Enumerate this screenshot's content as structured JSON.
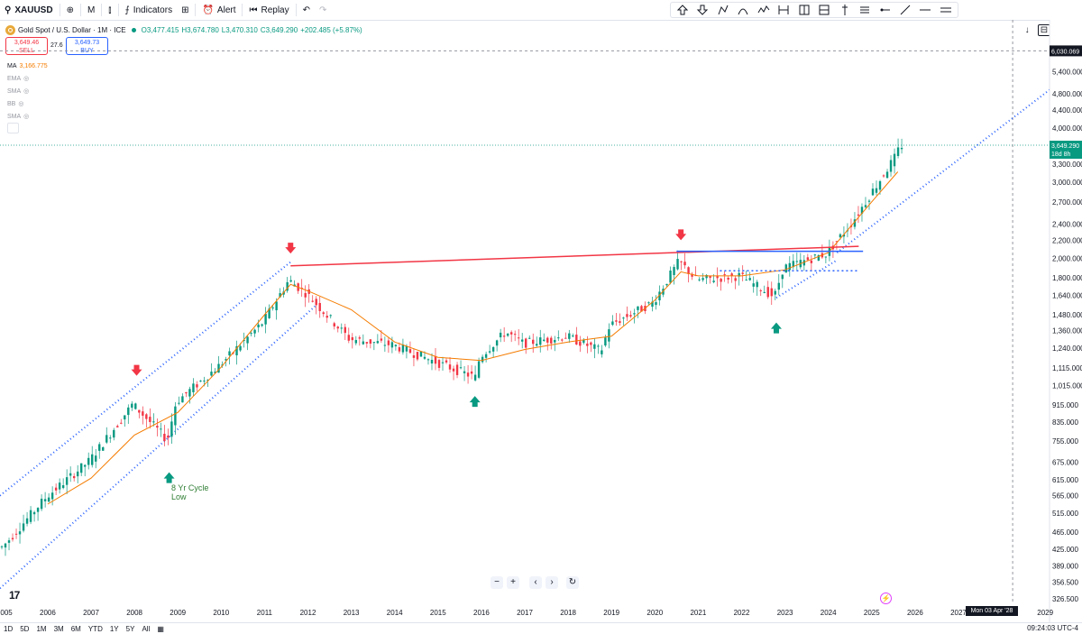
{
  "toolbar": {
    "symbol": "XAUUSD",
    "interval": "M",
    "indicators_label": "Indicators",
    "alert_label": "Alert",
    "replay_label": "Replay"
  },
  "legend": {
    "title": "Gold Spot / U.S. Dollar · 1M · ICE",
    "open": "O3,477.415",
    "high": "H3,674.780",
    "low": "L3,470.310",
    "close": "C3,649.290",
    "change": "+202.485 (+5.87%)"
  },
  "trade": {
    "sell_price": "3,649.46",
    "sell_label": "SELL",
    "spread": "27.6",
    "buy_price": "3,649.73",
    "buy_label": "BUY"
  },
  "indicators": [
    {
      "name": "MA",
      "value": "3,166.775"
    },
    {
      "name": "EMA"
    },
    {
      "name": "SMA"
    },
    {
      "name": "BB"
    },
    {
      "name": "SMA"
    }
  ],
  "price_axis": {
    "labels": [
      "6,030.069",
      "5,400.000",
      "4,800.000",
      "4,400.000",
      "4,000.000",
      "3,300.000",
      "3,000.000",
      "2,700.000",
      "2,400.000",
      "2,200.000",
      "2,000.000",
      "1,800.000",
      "1,640.000",
      "1,480.000",
      "1,360.000",
      "1,240.000",
      "1,115.000",
      "1,015.000",
      "915.000",
      "835.000",
      "755.000",
      "675.000",
      "615.000",
      "565.000",
      "515.000",
      "465.000",
      "425.000",
      "389.000",
      "356.500",
      "326.500"
    ],
    "current_price": "3,649.290",
    "countdown": "18d 8h",
    "crosshair_price": "6,030.069"
  },
  "time_axis": {
    "labels": [
      "2005",
      "2006",
      "2007",
      "2008",
      "2009",
      "2010",
      "2011",
      "2012",
      "2013",
      "2014",
      "2015",
      "2016",
      "2017",
      "2018",
      "2019",
      "2020",
      "2021",
      "2022",
      "2023",
      "2024",
      "2025",
      "2026",
      "2027",
      "2029"
    ],
    "crosshair_date": "Mon 03 Apr '28"
  },
  "annotations": {
    "cycle_low_line1": "8 Yr Cycle",
    "cycle_low_line2": "Low"
  },
  "ranges": [
    "1D",
    "5D",
    "1M",
    "3M",
    "6M",
    "YTD",
    "1Y",
    "5Y",
    "All"
  ],
  "clock": "09:24:03 UTC-4",
  "colors": {
    "up": "#089981",
    "down": "#f23645",
    "ma": "#f57c00",
    "channel": "#2962ff",
    "resistance": "#f23645"
  },
  "chart_data": {
    "type": "candlestick",
    "symbol": "XAUUSD",
    "interval": "1M",
    "y_scale": "log",
    "ylim": [
      320,
      6400
    ],
    "xlim": [
      2004.9,
      2029.1
    ],
    "series": [
      {
        "name": "MA",
        "type": "line",
        "values": [
          [
            2006,
            540
          ],
          [
            2007,
            620
          ],
          [
            2008,
            780
          ],
          [
            2009,
            880
          ],
          [
            2010,
            1120
          ],
          [
            2011,
            1480
          ],
          [
            2011.6,
            1740
          ],
          [
            2012,
            1680
          ],
          [
            2013,
            1520
          ],
          [
            2014,
            1280
          ],
          [
            2015,
            1180
          ],
          [
            2016,
            1160
          ],
          [
            2017,
            1230
          ],
          [
            2018,
            1280
          ],
          [
            2019,
            1320
          ],
          [
            2020,
            1600
          ],
          [
            2020.6,
            1860
          ],
          [
            2021,
            1820
          ],
          [
            2022,
            1820
          ],
          [
            2023,
            1880
          ],
          [
            2024,
            2060
          ],
          [
            2025,
            2700
          ],
          [
            2025.6,
            3167
          ]
        ]
      },
      {
        "name": "Price",
        "type": "candles",
        "values": [
          [
            2005,
            430
          ],
          [
            2006,
            560
          ],
          [
            2007,
            680
          ],
          [
            2008,
            920
          ],
          [
            2008.8,
            760
          ],
          [
            2009,
            930
          ],
          [
            2010,
            1130
          ],
          [
            2011,
            1420
          ],
          [
            2011.6,
            1780
          ],
          [
            2012,
            1660
          ],
          [
            2013,
            1300
          ],
          [
            2014,
            1260
          ],
          [
            2015,
            1150
          ],
          [
            2015.9,
            1060
          ],
          [
            2016,
            1180
          ],
          [
            2016.6,
            1350
          ],
          [
            2017,
            1270
          ],
          [
            2018,
            1320
          ],
          [
            2018.8,
            1220
          ],
          [
            2019,
            1400
          ],
          [
            2020,
            1580
          ],
          [
            2020.6,
            1970
          ],
          [
            2021,
            1780
          ],
          [
            2022,
            1820
          ],
          [
            2022.8,
            1630
          ],
          [
            2023,
            1900
          ],
          [
            2024,
            2050
          ],
          [
            2024.6,
            2430
          ],
          [
            2025,
            2800
          ],
          [
            2025.6,
            3450
          ],
          [
            2025.7,
            3649
          ]
        ]
      }
    ],
    "trendlines": [
      {
        "name": "resistance-2011-2024",
        "color": "red",
        "points": [
          [
            2011.6,
            1920
          ],
          [
            2024.7,
            2130
          ]
        ]
      },
      {
        "name": "neckline-2020",
        "color": "blue",
        "points": [
          [
            2020.5,
            2075
          ],
          [
            2024.8,
            2075
          ]
        ]
      },
      {
        "name": "support-dotted-2021",
        "color": "blue",
        "points": [
          [
            2021.5,
            1870
          ],
          [
            2024.7,
            1870
          ]
        ]
      }
    ]
  }
}
